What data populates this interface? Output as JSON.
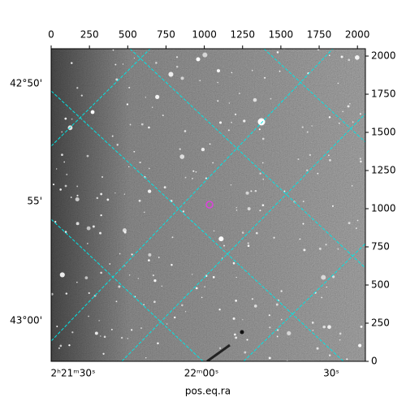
{
  "chart_data": {
    "type": "image",
    "xlabel": "pos.eq.ra",
    "xlim": [
      0,
      2052
    ],
    "xticks": [
      0,
      250,
      500,
      750,
      1000,
      1250,
      1500,
      1750,
      2000
    ],
    "ylim": [
      0,
      2048
    ],
    "yticks": [
      0,
      250,
      500,
      750,
      1000,
      1250,
      1500,
      1750,
      2000
    ],
    "ra_labels": [
      "2ʰ21ᵐ30ˢ",
      "22ᵐ00ˢ",
      "30ˢ"
    ],
    "dec_labels": [
      "42°50'",
      "55'",
      "43°00'"
    ],
    "grid_color": "#00e5e5",
    "marker_color": "#e040e0"
  }
}
